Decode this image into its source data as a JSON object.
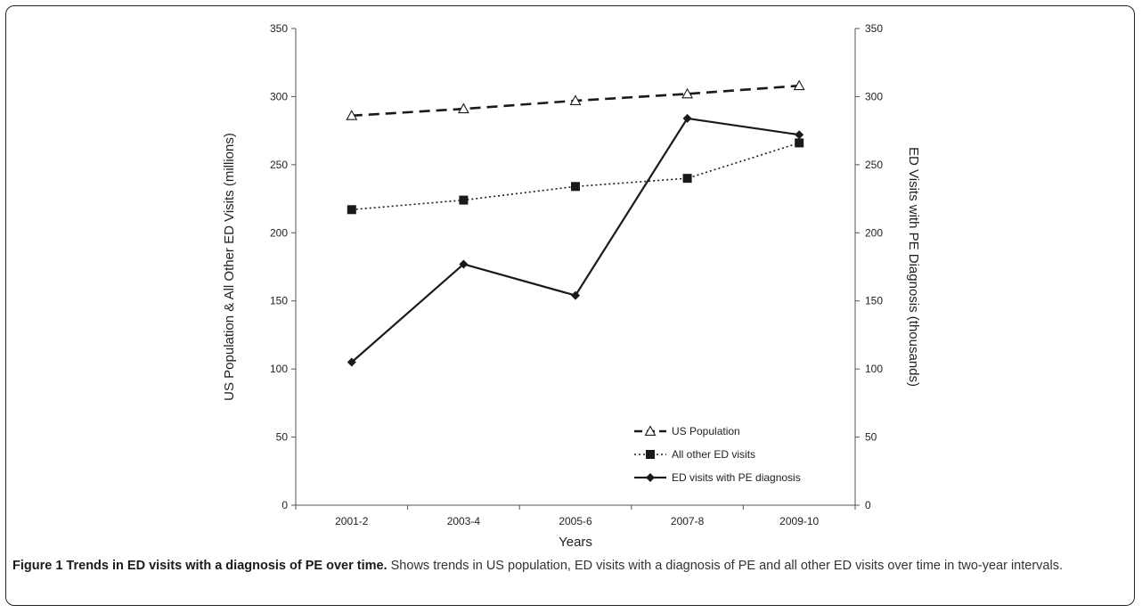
{
  "figure": {
    "caption_title": "Figure 1 Trends in ED visits with a diagnosis of PE over time.",
    "caption_text": "Shows trends in US population, ED visits with a diagnosis of PE and all other ED visits over time in two-year intervals."
  },
  "chart_data": {
    "type": "line",
    "title": "",
    "xlabel": "Years",
    "ylabel_left": "US Population & All Other ED Visits (millions)",
    "ylabel_right": "ED Visits with PE Diagnosis (thousands)",
    "categories": [
      "2001-2",
      "2003-4",
      "2005-6",
      "2007-8",
      "2009-10"
    ],
    "ylim_left": [
      0,
      350
    ],
    "ylim_right": [
      0,
      350
    ],
    "yticks": [
      0,
      50,
      100,
      150,
      200,
      250,
      300,
      350
    ],
    "grid": false,
    "legend_position": "bottom-right",
    "series": [
      {
        "name": "US Population",
        "axis": "left",
        "marker": "triangle-open",
        "line": "dashed",
        "color": "#1a1a1a",
        "values": [
          286,
          291,
          297,
          302,
          308
        ]
      },
      {
        "name": "All other ED visits",
        "axis": "left",
        "marker": "square",
        "line": "dotted",
        "color": "#1a1a1a",
        "values": [
          217,
          224,
          234,
          240,
          266
        ]
      },
      {
        "name": "ED visits with PE diagnosis",
        "axis": "right",
        "marker": "diamond",
        "line": "solid",
        "color": "#1a1a1a",
        "values": [
          105,
          177,
          154,
          284,
          272
        ]
      }
    ]
  }
}
